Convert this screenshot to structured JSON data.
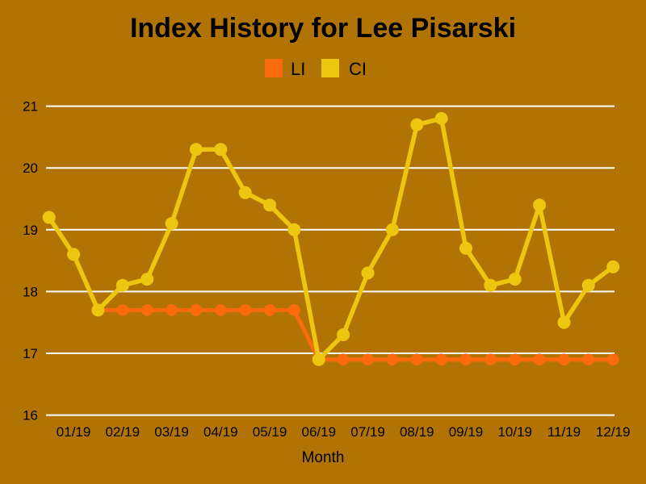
{
  "title": "Index History for Lee Pisarski",
  "colors": {
    "background": "#B17404",
    "grid": "#FFFFFF",
    "text": "#000000",
    "li": "#FB6A0C",
    "ci": "#ECC60F"
  },
  "legend": {
    "li_label": "LI",
    "ci_label": "CI"
  },
  "chart_data": {
    "type": "line",
    "title": "Index History for Lee Pisarski",
    "xlabel": "Month",
    "ylabel": "",
    "ylim": [
      16,
      21
    ],
    "y_ticks": [
      16,
      17,
      18,
      19,
      20,
      21
    ],
    "grid": true,
    "legend_position": "top-center",
    "x_tick_labels": [
      "01/19",
      "02/19",
      "03/19",
      "04/19",
      "05/19",
      "06/19",
      "07/19",
      "08/19",
      "09/19",
      "10/19",
      "11/19",
      "12/19"
    ],
    "points_per_month": 2,
    "series": [
      {
        "name": "LI",
        "color": "#FB6A0C",
        "values": [
          null,
          null,
          17.7,
          17.7,
          17.7,
          17.7,
          17.7,
          17.7,
          17.7,
          17.7,
          17.7,
          16.9,
          16.9,
          16.9,
          16.9,
          16.9,
          16.9,
          16.9,
          16.9,
          16.9,
          16.9,
          16.9,
          16.9,
          16.9
        ]
      },
      {
        "name": "CI",
        "color": "#ECC60F",
        "values": [
          19.2,
          18.6,
          17.7,
          18.1,
          18.2,
          19.1,
          20.3,
          20.3,
          19.6,
          19.4,
          19.0,
          16.9,
          17.3,
          18.3,
          19.0,
          20.7,
          20.8,
          18.7,
          18.1,
          18.2,
          19.4,
          17.5,
          18.1,
          18.4
        ]
      }
    ]
  }
}
